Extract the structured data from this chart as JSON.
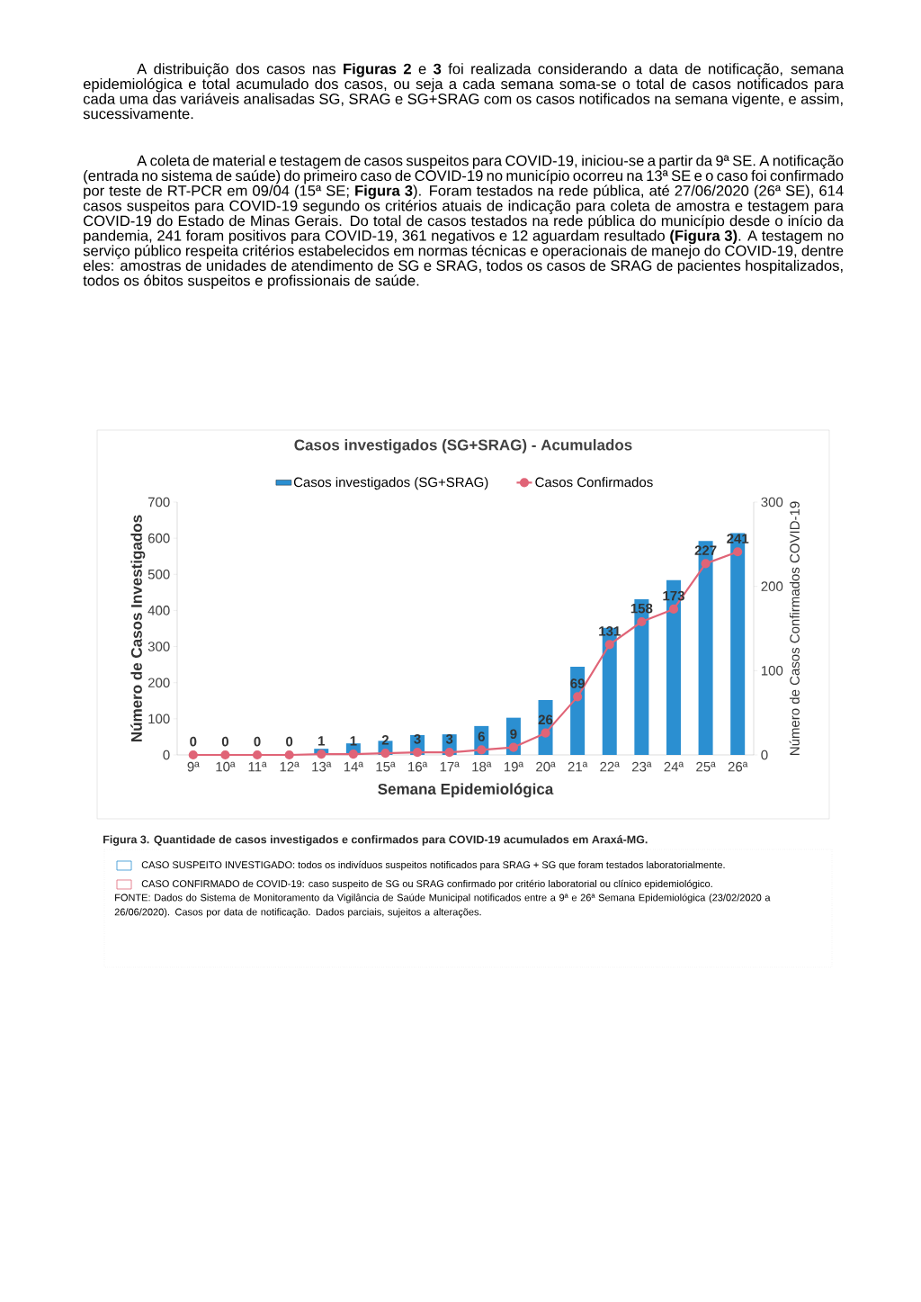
{
  "chart_data": {
    "type": "bar",
    "title": "Casos investigados (SG+SRAG) - Acumulados",
    "xlabel": "Semana Epidemiológica",
    "ylabel": "Número de Casos Investigados",
    "y2label": "Número de Casos Confirmados COVID-19",
    "categories": [
      "9ª",
      "10ª",
      "11ª",
      "12ª",
      "13ª",
      "14ª",
      "15ª",
      "16ª",
      "17ª",
      "18ª",
      "19ª",
      "20ª",
      "21ª",
      "22ª",
      "23ª",
      "24ª",
      "25ª",
      "26ª"
    ],
    "series": [
      {
        "name": "Casos investigados (SG+SRAG)",
        "color": "#2b8fd1",
        "values": [
          0,
          0,
          0,
          0,
          17,
          32,
          39,
          55,
          57,
          80,
          103,
          152,
          244,
          352,
          431,
          484,
          592,
          614
        ]
      },
      {
        "name": "Casos Confirmados",
        "type": "line",
        "axis": "y2",
        "color": "#e06477",
        "values": [
          0,
          0,
          0,
          0,
          1,
          1,
          2,
          3,
          3,
          6,
          9,
          26,
          69,
          131,
          158,
          173,
          227,
          241
        ],
        "value_labels": [
          "0",
          "0",
          "0",
          "0",
          "1",
          "1",
          "2",
          "3",
          "3",
          "6",
          "9",
          "26",
          "69",
          "131",
          "158",
          "173",
          "227",
          "241"
        ]
      }
    ],
    "ylim": [
      0,
      700
    ],
    "yticks": [
      0,
      100,
      200,
      300,
      400,
      500,
      600,
      700
    ],
    "y2lim": [
      0,
      300
    ],
    "y2ticks": [
      0,
      100,
      200,
      300
    ],
    "legend": "top",
    "marker": "circle",
    "line_style": "solid",
    "annotations": [
      "A distribuição dos casos nas **Figuras 2** e **3** foi realizada considerando a data de notificação, semana epidemiológica e total acumulado dos casos, ou seja a cada semana soma-se o total de casos notificados para cada uma das variáveis analisadas SG, SRAG e SG+SRAG com os casos notificados na semana vigente, e assim, sucessivamente.",
      "A coleta de material e testagem de casos suspeitos para COVID-19, iniciou-se a partir da 9ª SE. A notificação (entrada no sistema de saúde) do primeiro caso de COVID-19 no município ocorreu na 13ª SE e o caso foi confirmado por teste de RT-PCR em 09/04 (15ª SE; **Figura 3**). Foram testados na rede pública, até 27/06/2020 (26ª SE), 614 casos suspeitos para COVID-19 segundo os critérios atuais de indicação para coleta de amostra e testagem para COVID-19 do Estado de Minas Gerais. Do total de casos testados na rede pública do município desde o início da pandemia, 241 foram positivos para COVID-19, 361 negativos e 12 aguardam resultado **(Figura 3)**. A testagem no serviço público respeita critérios estabelecidos em normas técnicas e operacionais de manejo do COVID-19, dentre eles: amostras de unidades de atendimento de SG e SRAG, todos os casos de SRAG de pacientes hospitalizados, todos os óbitos suspeitos e profissionais de saúde.",
      "Figura 3. Quantidade de casos investigados e confirmados para COVID-19 acumulados em Araxá-MG.",
      "CASO SUSPEITO INVESTIGADO: todos os indivíduos suspeitos notificados para SRAG + SG que foram testados laboratorialmente.",
      "CASO CONFIRMADO de COVID-19: caso suspeito de SG ou SRAG confirmado por critério laboratorial ou clínico epidemiológico.",
      "FONTE: Dados do Sistema de Monitoramento da Vigilância de Saúde Municipal notificados entre a 9ª e 26ª Semana Epidemiológica (23/02/2020 a 26/06/2020).  Casos por data de notificação. Dados parciais, sujeitos a alterações."
    ]
  }
}
